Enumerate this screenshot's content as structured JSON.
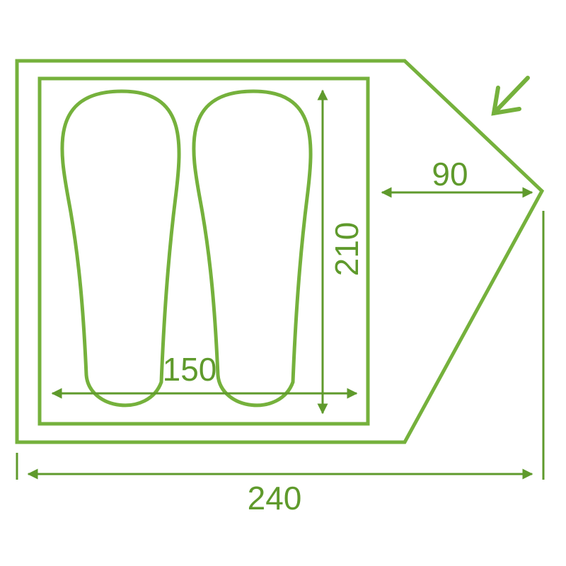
{
  "colors": {
    "outline": "#75b13c",
    "dimension": "#5f9a2c"
  },
  "icons": {
    "entrance": "arrow-down-left-icon"
  },
  "dimensions": {
    "total_length": "240",
    "inner_width": "150",
    "inner_length": "210",
    "vestibule_depth": "90"
  }
}
